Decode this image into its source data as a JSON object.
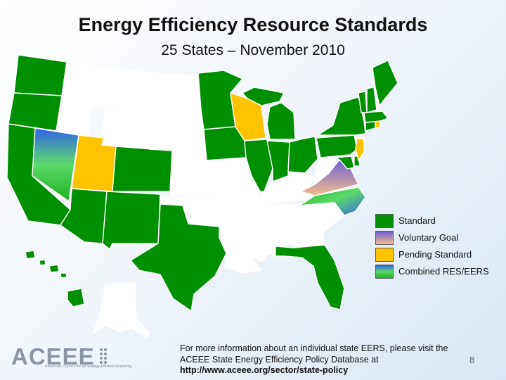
{
  "title": "Energy Efficiency Resource Standards",
  "subtitle": "25 States – November 2010",
  "colors": {
    "standard": "#008f00",
    "voluntary": "linear-gradient(#6a5cd6, #f2be8c)",
    "pending": "#ffc300",
    "combined": "linear-gradient(#2f62e8, #5cda6a, #1fb020)",
    "none": "#ffffff"
  },
  "legend": [
    {
      "key": "standard",
      "label": "Standard"
    },
    {
      "key": "voluntary",
      "label": "Voluntary Goal"
    },
    {
      "key": "pending",
      "label": "Pending Standard"
    },
    {
      "key": "combined",
      "label": "Combined RES/EERS"
    }
  ],
  "footer": {
    "text": "For more information about an individual state EERS, please visit the ACEEE State Energy Efficiency Policy Database at",
    "url": "http://www.aceee.org/sector/state-policy"
  },
  "page_number": "8",
  "logo": {
    "name": "ACEEE",
    "tagline": "American Council for an Energy-Efficient Economy"
  }
}
